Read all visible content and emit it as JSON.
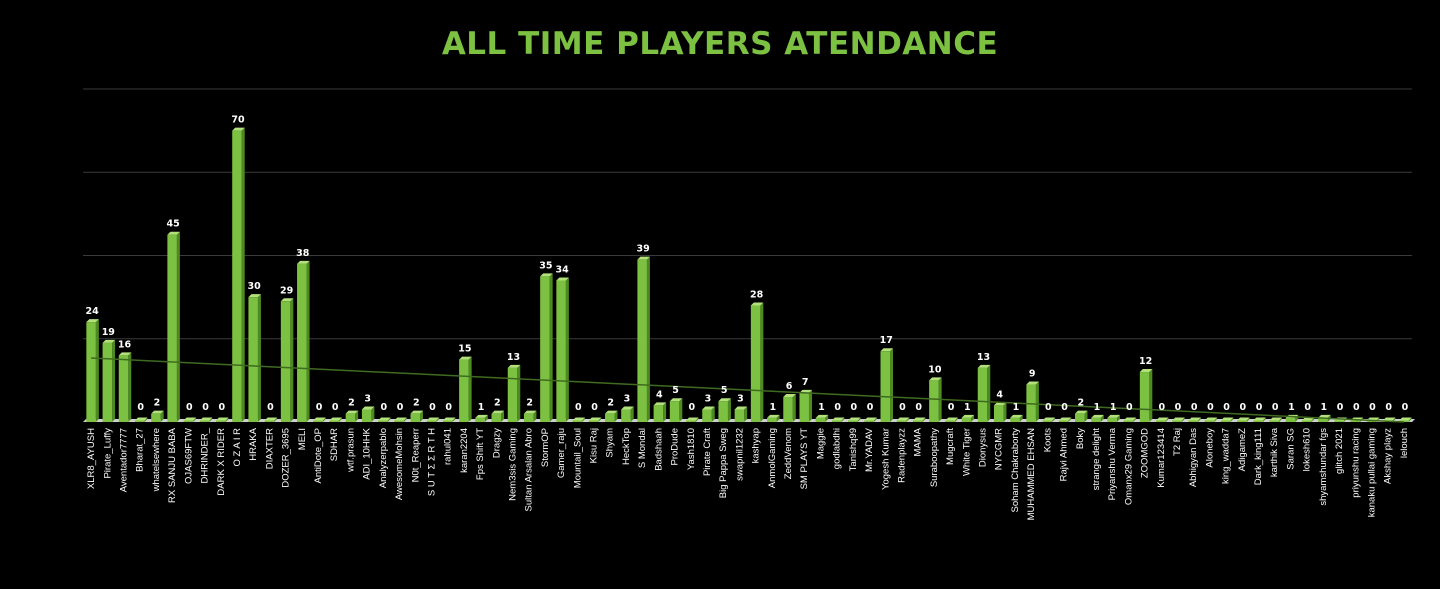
{
  "chart_data": {
    "type": "bar",
    "title": "ALL TIME PLAYERS ATENDANCE",
    "xlabel": "",
    "ylabel": "",
    "ylim": [
      0,
      80
    ],
    "grid": true,
    "legend": "none",
    "trendline": true,
    "colors": {
      "bar": "#7cc142",
      "bar_dark": "#4e8a22",
      "bar_top": "#b2e07a",
      "title": "#7cc142",
      "grid": "#3a3a3a",
      "trend": "#3f6b20",
      "background": "#000000"
    },
    "categories": [
      "XLR8_AYUSH",
      "Pirate_Luffy",
      "Aventador7777",
      "Bharat_27",
      "whatelsewhere",
      "RX SANJU BABA",
      "OJAS69FTW",
      "DHRINDER_",
      "DARK X RIDER",
      "O Z A I R",
      "HRAKA",
      "DIAXTER",
      "DOZER_3695",
      "MELI",
      "AntiDote_OP",
      "SDHAR",
      "wtf.prasun",
      "ADI_10HHK",
      "Analyzerpablo",
      "AwesomeMohsin",
      "N0t_Reaperr",
      "S U T Σ Σ R T H",
      "rahul041",
      "karan2204",
      "Fps Shift YT",
      "Dragzy",
      "Nem3sis Gaming",
      "Sultan Arsalan Abro",
      "StormOP",
      "Gamer_raju",
      "Mountail_Soul",
      "Kisu Raj",
      "Shyam",
      "HeckTop",
      "S Mondal",
      "Badshaah",
      "ProDude",
      "Yash1810",
      "Pirate Craft",
      "Big Pappa Sweg",
      "swapnil1232",
      "kashyap",
      "AnmolGaming",
      "ZeddVenom",
      "SM PLAYS YT",
      "Maggie",
      "godlabdhi",
      "Tanishq99",
      "Mr.YADAV",
      "Yogesh Kumar",
      "Radenplayzz",
      "MAMA",
      "Suraboopathy",
      "Mugcraft",
      "White Tiger",
      "Dionysus",
      "NYCGMR",
      "Soham Chakraborty",
      "MUHAMMED EHSAN",
      "Koots",
      "Rajvi Ahmed",
      "Boky",
      "strange delight",
      "Priyanshu Verma",
      "Omanx29 Gaming",
      "ZOOMGOD",
      "Kumar123414",
      "T2 Raj",
      "Abhigyan Das",
      "Aloneboy",
      "king_wadda7",
      "AdigameZ",
      "Dark_king111",
      "karthik Siva",
      "Saran SG",
      "lokesh610",
      "shyamshundar fgs",
      "glitch 2021",
      "priyunshu racing",
      "kanaku pullai gaming",
      "Akshay playz",
      "lelouch"
    ],
    "values": [
      24,
      19,
      16,
      0,
      2,
      45,
      0,
      0,
      0,
      70,
      30,
      0,
      29,
      38,
      0,
      0,
      2,
      3,
      0,
      0,
      2,
      0,
      0,
      15,
      1,
      2,
      13,
      2,
      35,
      34,
      0,
      0,
      2,
      3,
      39,
      4,
      5,
      0,
      3,
      5,
      3,
      28,
      1,
      6,
      7,
      1,
      0,
      0,
      0,
      17,
      0,
      0,
      10,
      0,
      1,
      13,
      4,
      1,
      9,
      0,
      0,
      2,
      1,
      1,
      0,
      12,
      0,
      0,
      0,
      0,
      0,
      0,
      0,
      0,
      1,
      0,
      1,
      0,
      0,
      0,
      0,
      0
    ]
  }
}
